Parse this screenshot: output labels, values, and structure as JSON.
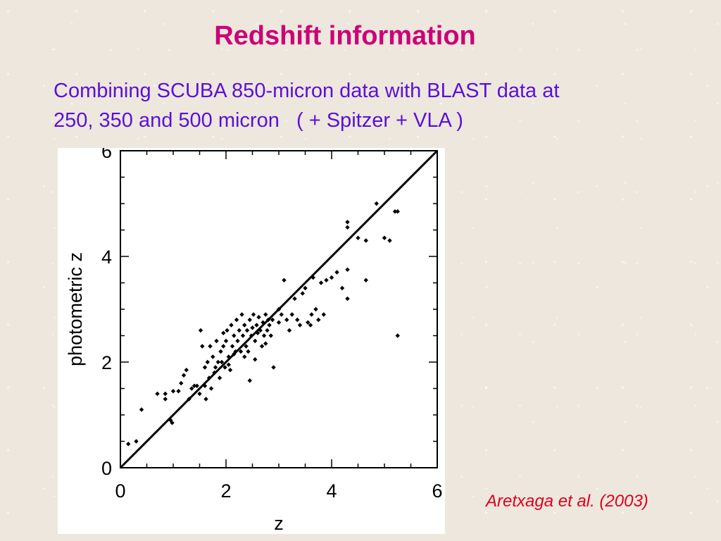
{
  "slide": {
    "title": "Redshift information",
    "subtitle_line1": "Combining SCUBA 850-micron data with BLAST data at",
    "subtitle_line2": "250, 350 and 500 micron   ( + Spitzer + VLA )",
    "citation": "Aretxaga et al. (2003)"
  },
  "colors": {
    "title": "#cc0077",
    "subtitle": "#5a10d8",
    "citation": "#e0001a"
  },
  "chart_data": {
    "type": "scatter",
    "xlabel": "z",
    "ylabel": "photometric  z",
    "xlim": [
      0,
      6
    ],
    "ylim": [
      0,
      6
    ],
    "xticks": [
      "0",
      "2",
      "4",
      "6"
    ],
    "yticks": [
      "0",
      "2",
      "4",
      "6"
    ],
    "reference_line": {
      "from": [
        0,
        0
      ],
      "to": [
        6,
        6
      ]
    },
    "grid": false,
    "points": [
      [
        0.15,
        0.45
      ],
      [
        0.3,
        0.5
      ],
      [
        0.4,
        1.1
      ],
      [
        0.85,
        1.4
      ],
      [
        0.95,
        0.9
      ],
      [
        0.7,
        1.4
      ],
      [
        0.85,
        1.3
      ],
      [
        0.98,
        0.85
      ],
      [
        1.0,
        1.45
      ],
      [
        1.1,
        1.45
      ],
      [
        1.15,
        1.6
      ],
      [
        1.2,
        1.75
      ],
      [
        1.25,
        1.85
      ],
      [
        1.3,
        1.3
      ],
      [
        1.35,
        1.5
      ],
      [
        1.4,
        1.55
      ],
      [
        1.45,
        1.55
      ],
      [
        1.5,
        1.4
      ],
      [
        1.52,
        2.6
      ],
      [
        1.55,
        2.3
      ],
      [
        1.6,
        1.9
      ],
      [
        1.62,
        1.3
      ],
      [
        1.65,
        2.0
      ],
      [
        1.68,
        1.7
      ],
      [
        1.7,
        2.3
      ],
      [
        1.72,
        1.5
      ],
      [
        1.75,
        2.1
      ],
      [
        1.78,
        1.8
      ],
      [
        1.8,
        1.9
      ],
      [
        1.82,
        2.4
      ],
      [
        1.85,
        2.0
      ],
      [
        1.88,
        1.7
      ],
      [
        1.9,
        2.2
      ],
      [
        1.92,
        2.0
      ],
      [
        1.95,
        2.3
      ],
      [
        1.98,
        1.9
      ],
      [
        2.0,
        2.4
      ],
      [
        2.02,
        2.6
      ],
      [
        2.05,
        2.1
      ],
      [
        2.08,
        1.85
      ],
      [
        2.1,
        2.7
      ],
      [
        2.12,
        2.3
      ],
      [
        2.15,
        2.5
      ],
      [
        2.18,
        2.2
      ],
      [
        2.2,
        2.8
      ],
      [
        2.22,
        2.4
      ],
      [
        2.25,
        2.6
      ],
      [
        2.28,
        2.2
      ],
      [
        2.3,
        2.9
      ],
      [
        2.32,
        2.5
      ],
      [
        2.35,
        2.7
      ],
      [
        2.38,
        2.3
      ],
      [
        2.4,
        2.6
      ],
      [
        2.42,
        2.2
      ],
      [
        2.45,
        2.8
      ],
      [
        2.48,
        2.5
      ],
      [
        2.5,
        2.65
      ],
      [
        2.52,
        2.9
      ],
      [
        2.55,
        2.4
      ],
      [
        2.58,
        2.7
      ],
      [
        2.6,
        2.55
      ],
      [
        2.62,
        2.85
      ],
      [
        2.65,
        2.6
      ],
      [
        2.68,
        2.3
      ],
      [
        2.7,
        2.75
      ],
      [
        2.72,
        2.5
      ],
      [
        2.75,
        2.9
      ],
      [
        2.78,
        2.6
      ],
      [
        2.8,
        2.8
      ],
      [
        2.82,
        2.7
      ],
      [
        2.85,
        2.5
      ],
      [
        2.88,
        2.8
      ],
      [
        2.9,
        1.9
      ],
      [
        3.0,
        3.0
      ],
      [
        3.05,
        2.9
      ],
      [
        3.1,
        3.55
      ],
      [
        3.15,
        2.8
      ],
      [
        3.2,
        2.6
      ],
      [
        3.25,
        2.9
      ],
      [
        3.3,
        3.2
      ],
      [
        3.35,
        2.8
      ],
      [
        3.4,
        2.7
      ],
      [
        3.45,
        3.3
      ],
      [
        3.5,
        3.4
      ],
      [
        3.55,
        2.75
      ],
      [
        3.6,
        2.7
      ],
      [
        3.62,
        2.9
      ],
      [
        3.65,
        3.6
      ],
      [
        3.7,
        3.0
      ],
      [
        3.75,
        2.8
      ],
      [
        3.8,
        3.5
      ],
      [
        3.85,
        2.9
      ],
      [
        3.9,
        3.55
      ],
      [
        4.0,
        3.6
      ],
      [
        4.1,
        3.7
      ],
      [
        4.2,
        3.4
      ],
      [
        4.3,
        3.75
      ],
      [
        4.3,
        3.2
      ],
      [
        4.3,
        4.55
      ],
      [
        4.3,
        4.65
      ],
      [
        4.5,
        4.35
      ],
      [
        4.65,
        4.3
      ],
      [
        4.65,
        3.55
      ],
      [
        4.85,
        5.0
      ],
      [
        5.0,
        4.35
      ],
      [
        5.1,
        4.3
      ],
      [
        5.2,
        4.85
      ],
      [
        5.25,
        4.85
      ],
      [
        5.25,
        2.5
      ],
      [
        2.05,
        1.95
      ],
      [
        1.6,
        1.55
      ],
      [
        2.35,
        2.1
      ],
      [
        2.45,
        1.65
      ],
      [
        2.15,
        2.15
      ],
      [
        1.95,
        2.55
      ],
      [
        2.55,
        2.05
      ],
      [
        2.75,
        2.35
      ],
      [
        3.0,
        2.75
      ]
    ]
  }
}
